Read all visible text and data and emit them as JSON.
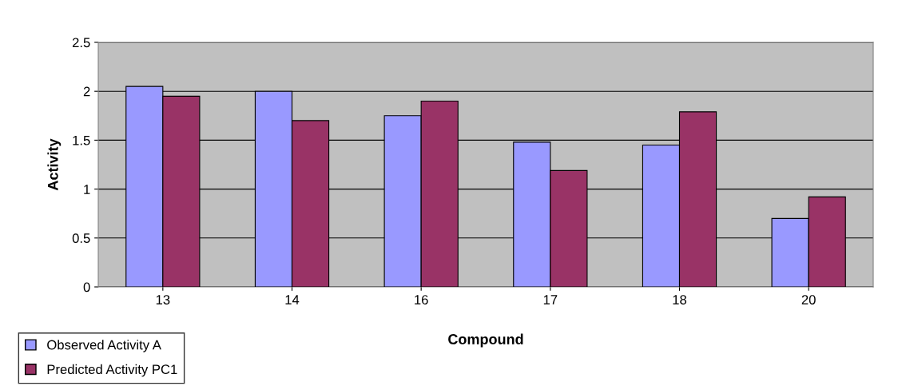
{
  "chart_data": {
    "type": "bar",
    "xlabel": "Compound",
    "ylabel": "Activity",
    "categories": [
      "13",
      "14",
      "16",
      "17",
      "18",
      "20"
    ],
    "series": [
      {
        "name": "Observed Activity A",
        "color": "#9999ff",
        "values": [
          2.05,
          2.0,
          1.75,
          1.48,
          1.45,
          0.7
        ]
      },
      {
        "name": "Predicted Activity PC1",
        "color": "#993366",
        "values": [
          1.95,
          1.7,
          1.9,
          1.19,
          1.79,
          0.92
        ]
      }
    ],
    "ylim": [
      0,
      2.5
    ],
    "yticks": [
      0,
      0.5,
      1,
      1.5,
      2,
      2.5
    ],
    "grid": "y",
    "legend": "bottom left"
  }
}
